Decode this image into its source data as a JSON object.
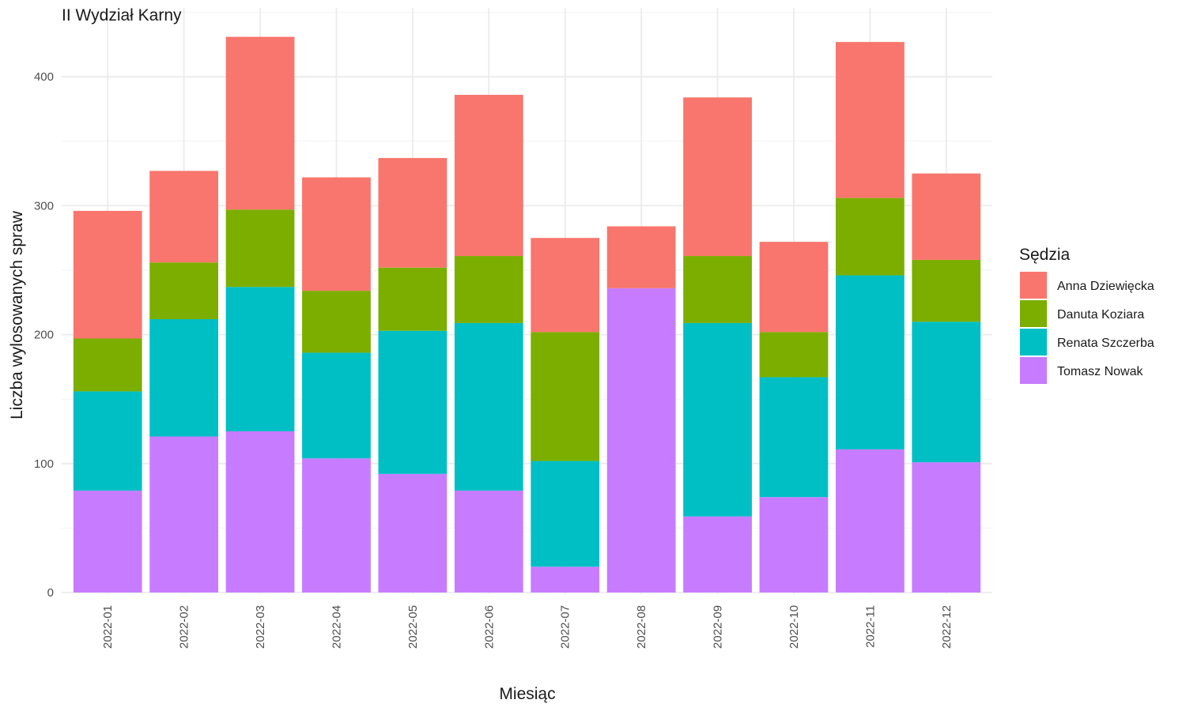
{
  "chart_data": {
    "type": "bar",
    "stacked": true,
    "title": "II Wydział Karny",
    "xlabel": "Miesiąc",
    "ylabel": "Liczba wylosowanych spraw",
    "ylim": [
      0,
      440
    ],
    "yticks": [
      0,
      100,
      200,
      300,
      400
    ],
    "grid": true,
    "legend": {
      "title": "Sędzia",
      "position": "right"
    },
    "categories": [
      "2022-01",
      "2022-02",
      "2022-03",
      "2022-04",
      "2022-05",
      "2022-06",
      "2022-07",
      "2022-08",
      "2022-09",
      "2022-10",
      "2022-11",
      "2022-12"
    ],
    "series": [
      {
        "name": "Tomasz Nowak",
        "color": "#C77CFF",
        "values": [
          79,
          121,
          125,
          104,
          92,
          79,
          20,
          236,
          59,
          74,
          111,
          101
        ]
      },
      {
        "name": "Renata Szczerba",
        "color": "#00BFC4",
        "values": [
          77,
          91,
          112,
          82,
          111,
          130,
          82,
          0,
          150,
          93,
          135,
          109
        ]
      },
      {
        "name": "Danuta Koziara",
        "color": "#7CAE00",
        "values": [
          41,
          44,
          60,
          48,
          49,
          52,
          100,
          0,
          52,
          35,
          60,
          48
        ]
      },
      {
        "name": "Anna Dziewięcka",
        "color": "#F8766D",
        "values": [
          99,
          71,
          134,
          88,
          85,
          125,
          73,
          48,
          123,
          70,
          121,
          67
        ]
      }
    ],
    "legend_order": [
      "Anna Dziewięcka",
      "Danuta Koziara",
      "Renata Szczerba",
      "Tomasz Nowak"
    ]
  }
}
